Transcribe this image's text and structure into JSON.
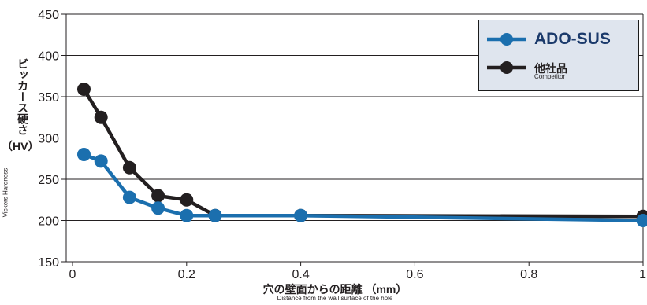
{
  "chart_data": {
    "type": "line",
    "y_title": "ビッカース硬さ",
    "y_unit": "（HV）",
    "y_title_en": "Vickers Hardness",
    "x_title": "穴の壁面からの距離 （mm）",
    "x_title_en": "Distance from the wall surface of the hole",
    "xlim": [
      0,
      1
    ],
    "ylim": [
      150,
      450
    ],
    "x_ticks": [
      "0",
      "0.2",
      "0.4",
      "0.6",
      "0.8",
      "1"
    ],
    "x_tick_values": [
      0,
      0.2,
      0.4,
      0.6,
      0.8,
      1
    ],
    "y_ticks": [
      "150",
      "200",
      "250",
      "300",
      "350",
      "400",
      "450"
    ],
    "y_tick_values": [
      150,
      200,
      250,
      300,
      350,
      400,
      450
    ],
    "grid": "horizontal",
    "legend_position": "top-right",
    "series": [
      {
        "name": "ADO-SUS",
        "color": "#1b6fae",
        "x": [
          0.02,
          0.05,
          0.1,
          0.15,
          0.2,
          0.25,
          0.4,
          1.0
        ],
        "y": [
          280,
          272,
          228,
          215,
          206,
          206,
          206,
          200
        ]
      },
      {
        "name": "他社品",
        "name_en": "Competitor",
        "color": "#231f20",
        "x": [
          0.02,
          0.05,
          0.1,
          0.15,
          0.2,
          0.25,
          0.4,
          1.0
        ],
        "y": [
          359,
          325,
          264,
          230,
          225,
          206,
          206,
          205
        ]
      }
    ]
  }
}
